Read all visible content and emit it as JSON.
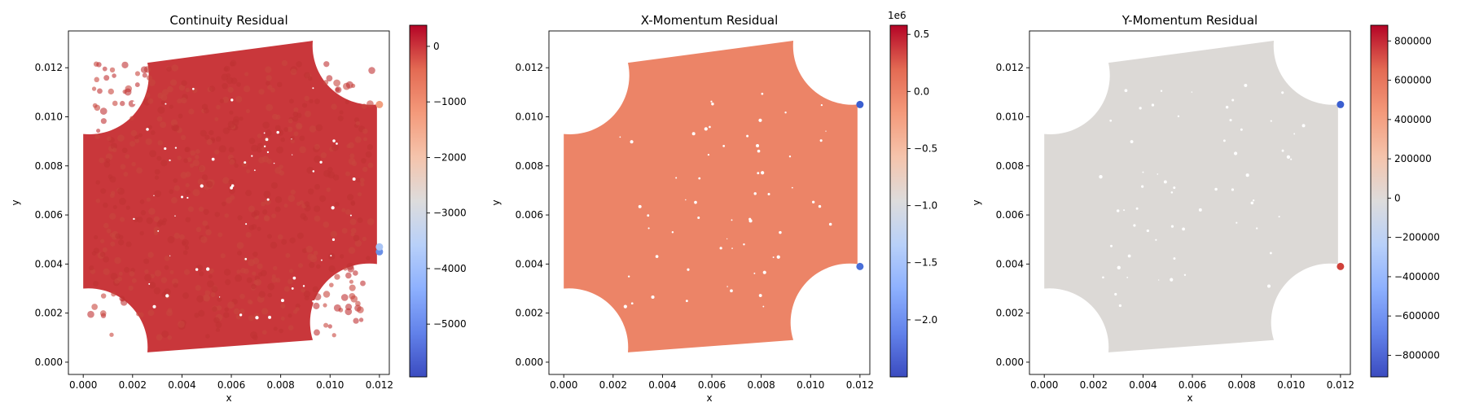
{
  "chart_data": [
    {
      "type": "scatter",
      "title": "Continuity Residual",
      "xlabel": "x",
      "ylabel": "y",
      "xlim": [
        -0.0006,
        0.0124
      ],
      "ylim": [
        -0.0005,
        0.0135
      ],
      "xticks": [
        "0.000",
        "0.002",
        "0.004",
        "0.006",
        "0.008",
        "0.010",
        "0.012"
      ],
      "yticks": [
        "0.000",
        "0.002",
        "0.004",
        "0.006",
        "0.008",
        "0.010",
        "0.012"
      ],
      "colorbar": {
        "cmap": "coolwarm",
        "range": [
          -5950,
          380
        ],
        "ticks": [
          "0",
          "−1000",
          "−2000",
          "−3000",
          "−4000",
          "−5000"
        ],
        "tick_values": [
          0,
          -1000,
          -2000,
          -3000,
          -4000,
          -5000
        ],
        "offset_text": ""
      },
      "field_color": "#c9373b",
      "outliers": [
        {
          "x": 0.012,
          "y": 0.0045,
          "color": "#6a8fe6"
        },
        {
          "x": 0.012,
          "y": 0.0047,
          "color": "#a9c4f5"
        },
        {
          "x": 0.012,
          "y": 0.0105,
          "color": "#f2a080"
        }
      ]
    },
    {
      "type": "scatter",
      "title": "X-Momentum Residual",
      "xlabel": "x",
      "ylabel": "y",
      "xlim": [
        -0.0006,
        0.0124
      ],
      "ylim": [
        -0.0005,
        0.0135
      ],
      "xticks": [
        "0.000",
        "0.002",
        "0.004",
        "0.006",
        "0.008",
        "0.010",
        "0.012"
      ],
      "yticks": [
        "0.000",
        "0.002",
        "0.004",
        "0.006",
        "0.008",
        "0.010",
        "0.012"
      ],
      "colorbar": {
        "cmap": "coolwarm",
        "range": [
          -2.5,
          0.58
        ],
        "ticks": [
          "0.5",
          "0.0",
          "−0.5",
          "−1.0",
          "−1.5",
          "−2.0"
        ],
        "tick_values": [
          0.5,
          0.0,
          -0.5,
          -1.0,
          -1.5,
          -2.0
        ],
        "offset_text": "1e6"
      },
      "field_color": "#ec8467",
      "outliers": [
        {
          "x": 0.012,
          "y": 0.0105,
          "color": "#3b5fd0"
        },
        {
          "x": 0.012,
          "y": 0.0039,
          "color": "#4a6fd8"
        }
      ]
    },
    {
      "type": "scatter",
      "title": "Y-Momentum Residual",
      "xlabel": "x",
      "ylabel": "y",
      "xlim": [
        -0.0006,
        0.0124
      ],
      "ylim": [
        -0.0005,
        0.0135
      ],
      "xticks": [
        "0.000",
        "0.002",
        "0.004",
        "0.006",
        "0.008",
        "0.010",
        "0.012"
      ],
      "yticks": [
        "0.000",
        "0.002",
        "0.004",
        "0.006",
        "0.008",
        "0.010",
        "0.012"
      ],
      "colorbar": {
        "cmap": "coolwarm",
        "range": [
          -910000,
          880000
        ],
        "ticks": [
          "800000",
          "600000",
          "400000",
          "200000",
          "0",
          "−200000",
          "−400000",
          "−600000",
          "−800000"
        ],
        "tick_values": [
          800000,
          600000,
          400000,
          200000,
          0,
          -200000,
          -400000,
          -600000,
          -800000
        ],
        "offset_text": ""
      },
      "field_color": "#dcd9d6",
      "outliers": [
        {
          "x": 0.012,
          "y": 0.0105,
          "color": "#3b5fd0"
        },
        {
          "x": 0.012,
          "y": 0.0039,
          "color": "#d0413a"
        }
      ]
    }
  ]
}
